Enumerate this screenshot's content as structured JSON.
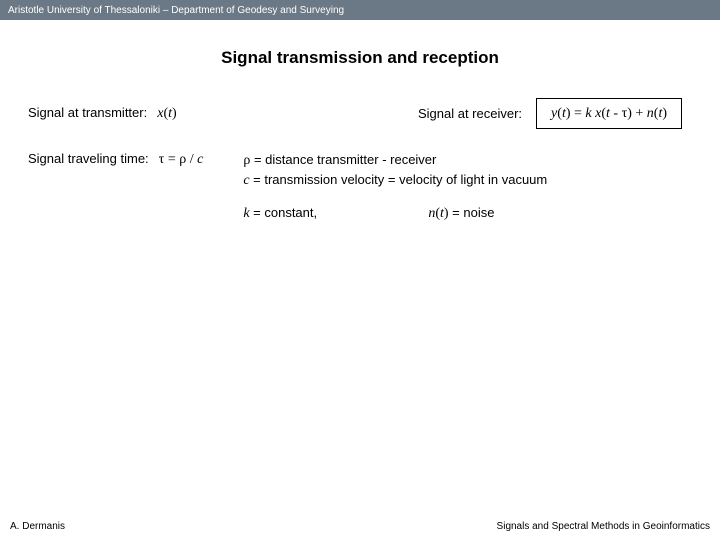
{
  "header": {
    "text": "Aristotle University of Thessaloniki – Department of Geodesy and Surveying"
  },
  "title": "Signal transmission and reception",
  "transmitter": {
    "label": "Signal at transmitter:",
    "expr_var": "x",
    "expr_paren_open": "(",
    "expr_t": "t",
    "expr_paren_close": ")"
  },
  "receiver": {
    "label": "Signal at receiver:",
    "expr_y": "y",
    "p1": "(",
    "t1": "t",
    "p2": ") = ",
    "k": "k x",
    "p3": "(",
    "t2": "t",
    "minus": " - ",
    "tau": "τ",
    "p4": ") + ",
    "n": "n",
    "p5": "(",
    "t3": "t",
    "p6": ")"
  },
  "travel": {
    "label": "Signal traveling time:",
    "tau": "τ",
    "eq": " = ",
    "rho": "ρ",
    "slash": " / ",
    "c": "c"
  },
  "defs": {
    "rho": "ρ",
    "rho_txt": " = distance transmitter - receiver",
    "c": "c",
    "c_txt": " = transmission velocity = velocity of light in vacuum",
    "k": "k",
    "k_txt": " = constant,",
    "n": "n",
    "p1": "(",
    "t": "t",
    "p2": ")",
    "n_txt": " = noise"
  },
  "footer": {
    "left": "A. Dermanis",
    "right": "Signals and Spectral Methods in Geoinformatics"
  }
}
